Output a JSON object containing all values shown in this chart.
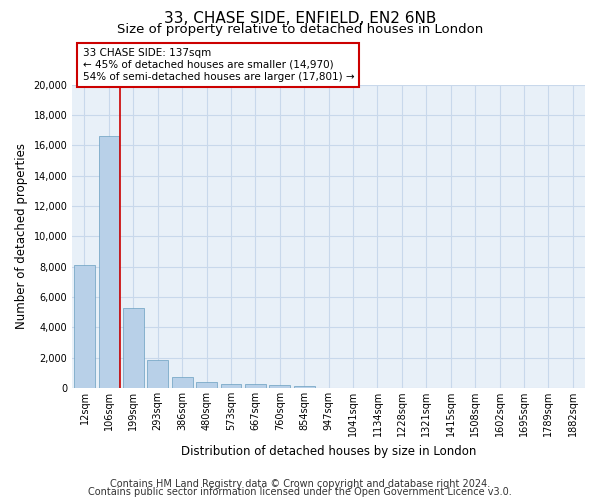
{
  "title1": "33, CHASE SIDE, ENFIELD, EN2 6NB",
  "title2": "Size of property relative to detached houses in London",
  "xlabel": "Distribution of detached houses by size in London",
  "ylabel": "Number of detached properties",
  "categories": [
    "12sqm",
    "106sqm",
    "199sqm",
    "293sqm",
    "386sqm",
    "480sqm",
    "573sqm",
    "667sqm",
    "760sqm",
    "854sqm",
    "947sqm",
    "1041sqm",
    "1134sqm",
    "1228sqm",
    "1321sqm",
    "1415sqm",
    "1508sqm",
    "1602sqm",
    "1695sqm",
    "1789sqm",
    "1882sqm"
  ],
  "values": [
    8100,
    16600,
    5300,
    1850,
    700,
    370,
    280,
    230,
    170,
    120,
    0,
    0,
    0,
    0,
    0,
    0,
    0,
    0,
    0,
    0,
    0
  ],
  "bar_color": "#b8d0e8",
  "bar_edge_color": "#6a9fc0",
  "red_line_index": 1.45,
  "annotation_line1": "33 CHASE SIDE: 137sqm",
  "annotation_line2": "← 45% of detached houses are smaller (14,970)",
  "annotation_line3": "54% of semi-detached houses are larger (17,801) →",
  "annotation_box_color": "#ffffff",
  "annotation_box_edge_color": "#cc0000",
  "ylim": [
    0,
    20000
  ],
  "yticks": [
    0,
    2000,
    4000,
    6000,
    8000,
    10000,
    12000,
    14000,
    16000,
    18000,
    20000
  ],
  "grid_color": "#c8d8eb",
  "background_color": "#e8f0f8",
  "footer1": "Contains HM Land Registry data © Crown copyright and database right 2024.",
  "footer2": "Contains public sector information licensed under the Open Government Licence v3.0.",
  "title1_fontsize": 11,
  "title2_fontsize": 9.5,
  "tick_fontsize": 7,
  "ylabel_fontsize": 8.5,
  "xlabel_fontsize": 8.5,
  "footer_fontsize": 7,
  "annotation_fontsize": 7.5
}
